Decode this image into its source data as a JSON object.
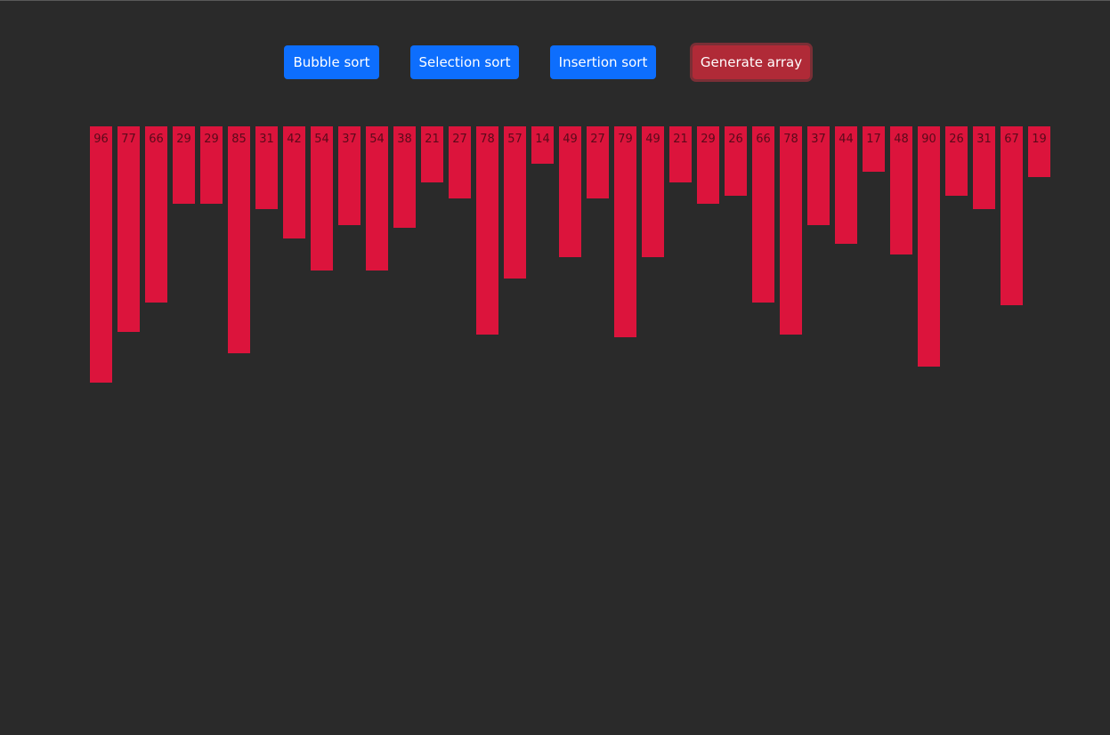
{
  "toolbar": {
    "bubble_label": "Bubble sort",
    "selection_label": "Selection sort",
    "insertion_label": "Insertion sort",
    "generate_label": "Generate array"
  },
  "colors": {
    "background": "#2a2a2a",
    "bar": "#dc143c",
    "primary_button": "#0d6efd",
    "danger_button": "#b02a37"
  },
  "array": {
    "values": [
      96,
      77,
      66,
      29,
      29,
      85,
      31,
      42,
      54,
      37,
      54,
      38,
      21,
      27,
      78,
      57,
      14,
      49,
      27,
      79,
      49,
      21,
      29,
      26,
      66,
      78,
      37,
      44,
      17,
      48,
      90,
      26,
      31,
      67,
      19
    ]
  }
}
